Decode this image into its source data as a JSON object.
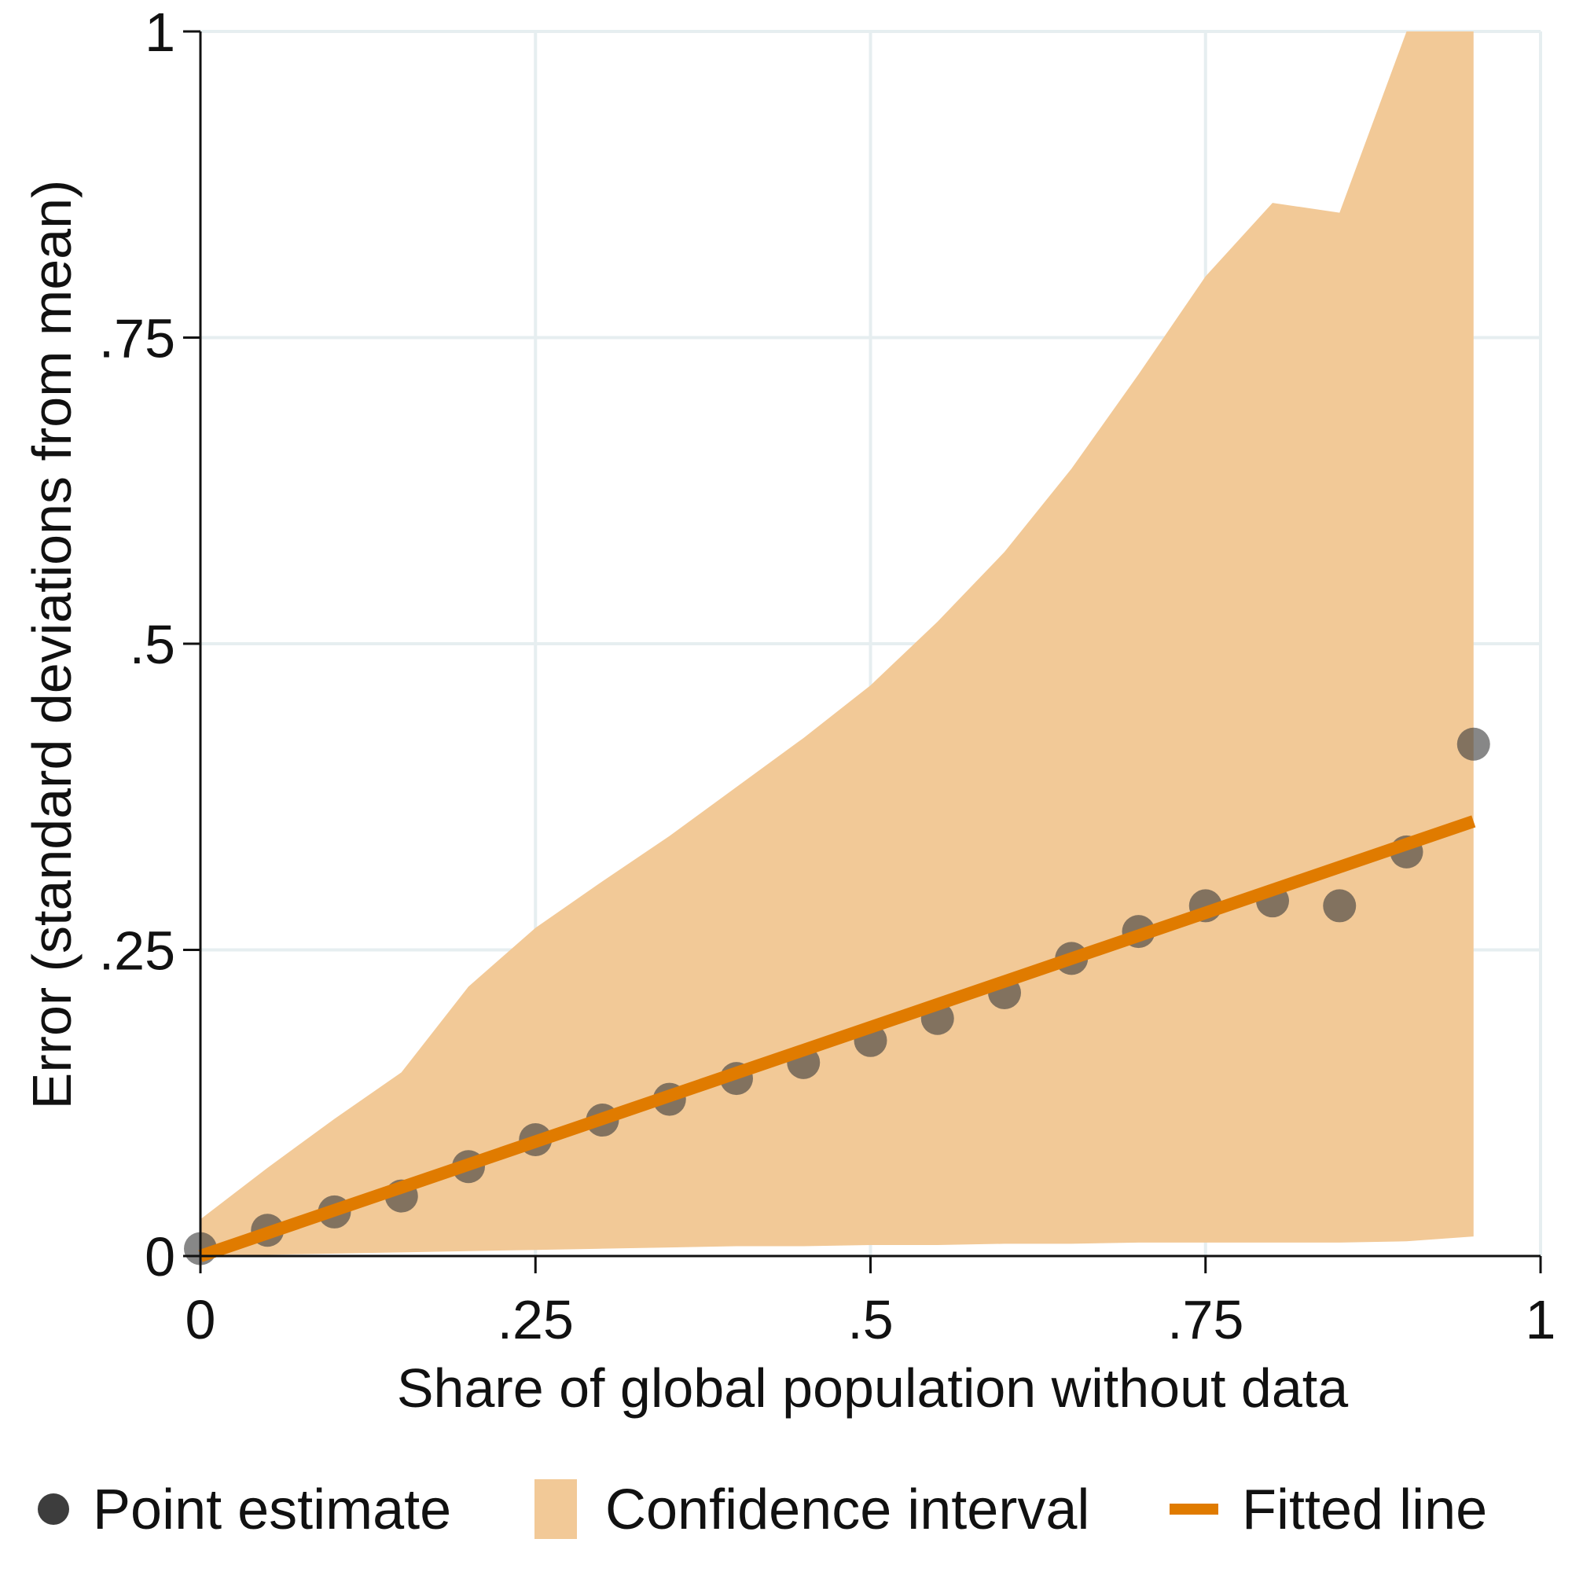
{
  "chart_data": {
    "type": "scatter",
    "title": "",
    "xlabel": "Share of global population without data",
    "ylabel": "Error (standard deviations from mean)",
    "xlim": [
      0,
      1
    ],
    "ylim": [
      0,
      1
    ],
    "x_ticks": [
      0,
      0.25,
      0.5,
      0.75,
      1
    ],
    "x_tick_labels": [
      "0",
      ".25",
      ".5",
      ".75",
      "1"
    ],
    "y_ticks": [
      0,
      0.25,
      0.5,
      0.75,
      1
    ],
    "y_tick_labels": [
      "0",
      ".25",
      ".5",
      ".75",
      "1"
    ],
    "grid": true,
    "legend_position": "bottom",
    "colors": {
      "point": "#3d3d3d",
      "band": "#f2c997",
      "line": "#e07b00"
    },
    "x": [
      0,
      0.05,
      0.1,
      0.15,
      0.2,
      0.25,
      0.3,
      0.35,
      0.4,
      0.45,
      0.5,
      0.55,
      0.6,
      0.65,
      0.7,
      0.75,
      0.8,
      0.85,
      0.9,
      0.95
    ],
    "series": [
      {
        "name": "Point estimate",
        "kind": "scatter",
        "values": [
          0.006,
          0.021,
          0.036,
          0.049,
          0.073,
          0.095,
          0.111,
          0.128,
          0.145,
          0.158,
          0.176,
          0.194,
          0.215,
          0.243,
          0.265,
          0.286,
          0.29,
          0.286,
          0.33,
          0.418
        ]
      },
      {
        "name": "Confidence interval",
        "kind": "band",
        "lower": [
          0.0,
          0.001,
          0.002,
          0.003,
          0.004,
          0.005,
          0.006,
          0.007,
          0.008,
          0.008,
          0.009,
          0.009,
          0.01,
          0.01,
          0.011,
          0.011,
          0.011,
          0.011,
          0.012,
          0.016
        ],
        "upper": [
          0.03,
          0.072,
          0.112,
          0.15,
          0.22,
          0.268,
          0.306,
          0.343,
          0.383,
          0.423,
          0.466,
          0.518,
          0.575,
          0.643,
          0.72,
          0.8,
          0.86,
          0.852,
          1.0,
          1.0
        ]
      },
      {
        "name": "Fitted line",
        "kind": "line",
        "x": [
          0,
          0.95
        ],
        "values": [
          0.0,
          0.355
        ]
      }
    ],
    "legend": [
      "Point estimate",
      "Confidence interval",
      "Fitted line"
    ]
  }
}
